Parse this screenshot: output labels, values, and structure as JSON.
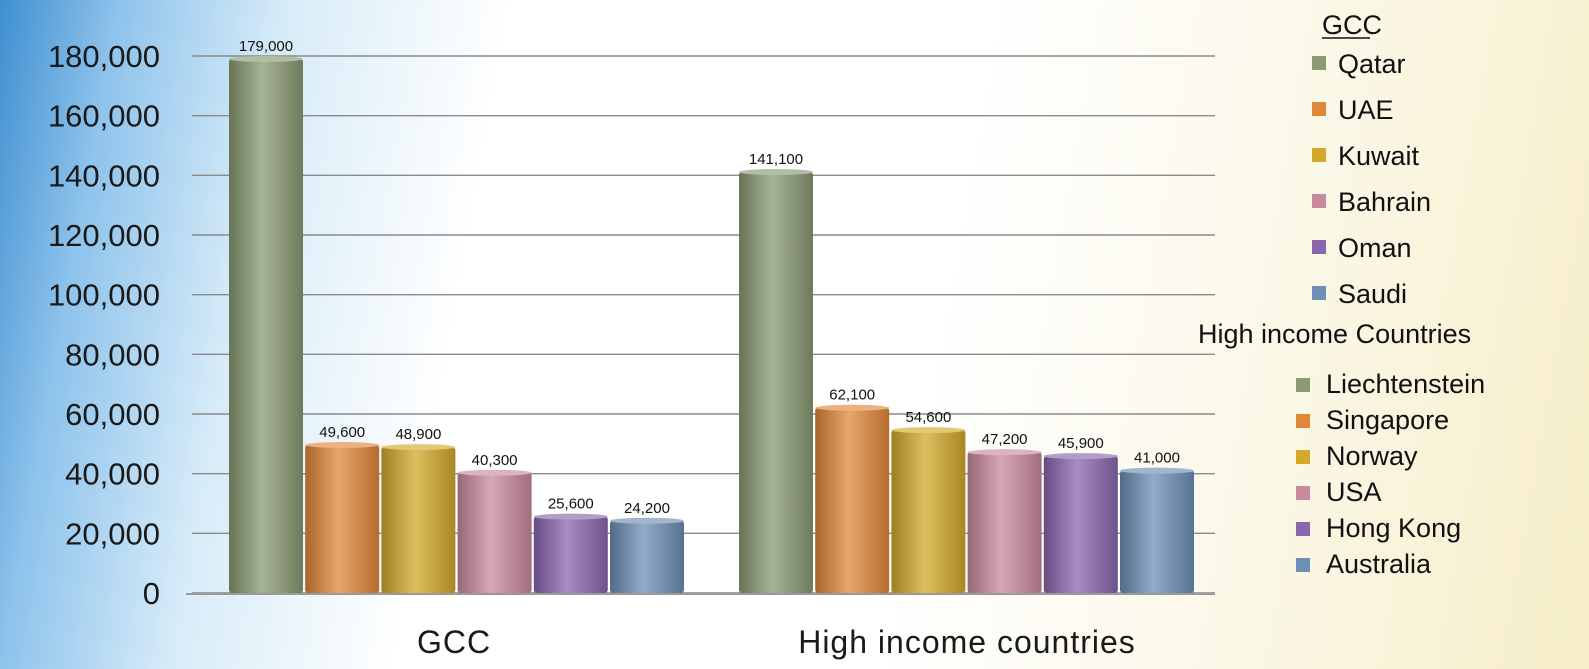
{
  "chart_data": {
    "type": "bar",
    "categories": [
      "GCC",
      "High income countries"
    ],
    "ylim": [
      0,
      180000
    ],
    "yticks": [
      "0",
      "20,000",
      "40,000",
      "60,000",
      "80,000",
      "100,000",
      "120,000",
      "140,000",
      "160,000",
      "180,000"
    ],
    "grid": true,
    "legend_placement": "right",
    "groups": [
      {
        "category": "GCC",
        "legend_title": "GCC",
        "bars": [
          {
            "name": "Qatar",
            "value": 179000,
            "label": "179,000"
          },
          {
            "name": "UAE",
            "value": 49600,
            "label": "49,600"
          },
          {
            "name": "Kuwait",
            "value": 48900,
            "label": "48,900"
          },
          {
            "name": "Bahrain",
            "value": 40300,
            "label": "40,300"
          },
          {
            "name": "Oman",
            "value": 25600,
            "label": "25,600"
          },
          {
            "name": "Saudi",
            "value": 24200,
            "label": "24,200"
          }
        ]
      },
      {
        "category": "High income countries",
        "legend_title": "High income Countries",
        "bars": [
          {
            "name": "Liechtenstein",
            "value": 141100,
            "label": "141,100"
          },
          {
            "name": "Singapore",
            "value": 62100,
            "label": "62,100"
          },
          {
            "name": "Norway",
            "value": 54600,
            "label": "54,600"
          },
          {
            "name": "USA",
            "value": 47200,
            "label": "47,200"
          },
          {
            "name": "Hong Kong",
            "value": 45900,
            "label": "45,900"
          },
          {
            "name": "Australia",
            "value": 41000,
            "label": "41,000"
          }
        ]
      }
    ],
    "colors": [
      "#8a9a72",
      "#e0883a",
      "#d3a92a",
      "#c98a9e",
      "#8a67ad",
      "#6d8fb5"
    ]
  }
}
